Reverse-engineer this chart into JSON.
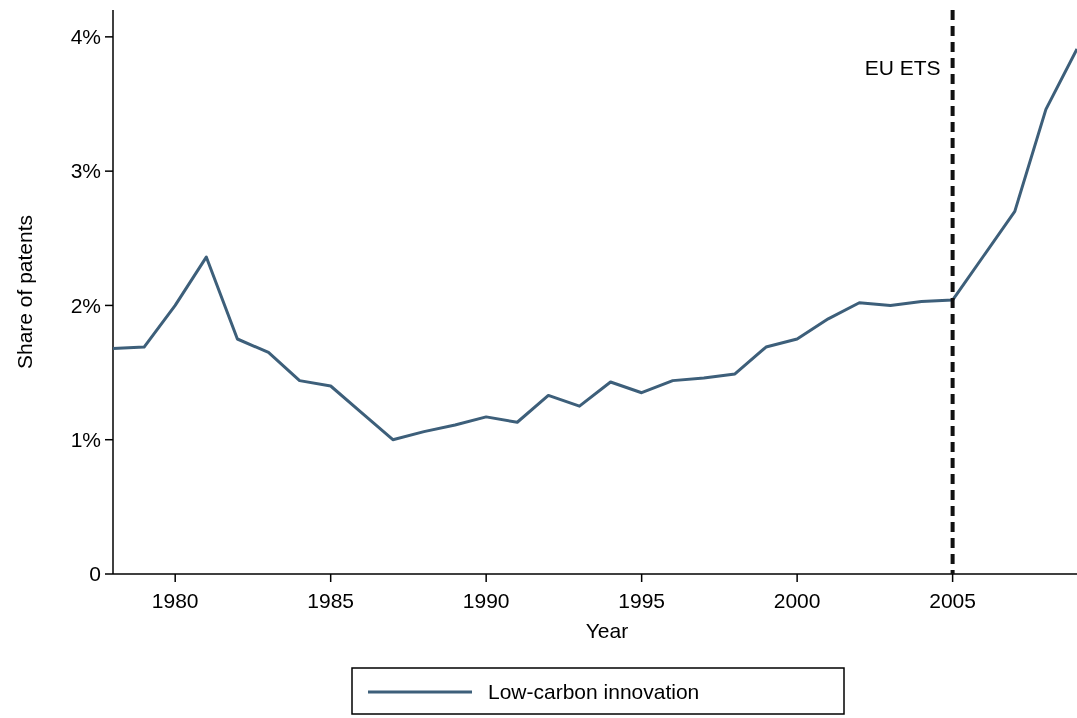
{
  "chart_data": {
    "type": "line",
    "xlabel": "Year",
    "ylabel": "Share of patents",
    "x": [
      1978,
      1979,
      1980,
      1981,
      1982,
      1983,
      1984,
      1985,
      1986,
      1987,
      1988,
      1989,
      1990,
      1991,
      1992,
      1993,
      1994,
      1995,
      1996,
      1997,
      1998,
      1999,
      2000,
      2001,
      2002,
      2003,
      2004,
      2005,
      2006,
      2007,
      2008,
      2009
    ],
    "series": [
      {
        "name": "Low-carbon innovation",
        "color": "#3d5f7a",
        "values": [
          1.68,
          1.69,
          2.0,
          2.36,
          1.75,
          1.65,
          1.44,
          1.4,
          1.2,
          1.0,
          1.06,
          1.11,
          1.17,
          1.13,
          1.33,
          1.25,
          1.43,
          1.35,
          1.44,
          1.46,
          1.49,
          1.69,
          1.75,
          1.9,
          2.02,
          2.0,
          2.03,
          2.04,
          2.37,
          2.7,
          3.46,
          3.91
        ]
      }
    ],
    "xlim": [
      1978,
      2009
    ],
    "xticks": [
      1980,
      1985,
      1990,
      1995,
      2000,
      2005
    ],
    "ylim": [
      0,
      4.2
    ],
    "yticks": [
      0,
      {
        "value": 1,
        "label": "1%"
      },
      {
        "value": 2,
        "label": "2%"
      },
      {
        "value": 3,
        "label": "3%"
      },
      {
        "value": 4,
        "label": "4%"
      }
    ],
    "ref_lines": [
      {
        "axis": "x",
        "value": 2005,
        "label": "EU ETS",
        "color": "#111111",
        "line_style": "dashed"
      }
    ],
    "grid": false,
    "legend": "bottom",
    "line_style": "solid",
    "marker": "none"
  }
}
